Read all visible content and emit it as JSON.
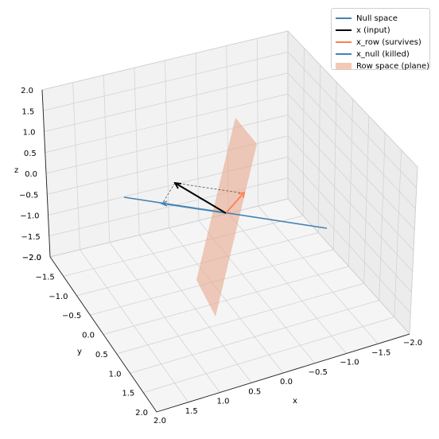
{
  "chart_data": {
    "type": "3d-line",
    "title": "",
    "xlabel": "x",
    "ylabel": "y",
    "zlabel": "z",
    "xlim": [
      -2,
      2
    ],
    "ylim": [
      -2,
      2
    ],
    "zlim": [
      -2,
      2
    ],
    "xticks": [
      "2.0",
      "1.5",
      "1.0",
      "0.5",
      "0.0",
      "−0.5",
      "−1.0",
      "−1.5",
      "−2.0"
    ],
    "yticks": [
      "−2.0",
      "−1.5",
      "−1.0",
      "−0.5",
      "0.0",
      "0.5",
      "1.0",
      "1.5",
      "2.0"
    ],
    "zticks": [
      "2.0",
      "1.5",
      "1.0",
      "0.5",
      "0.0",
      "−0.5",
      "−1.0",
      "−1.5",
      "−2.0"
    ],
    "grid": true,
    "legend_position": "top-right",
    "series": [
      {
        "name": "Null space",
        "kind": "line",
        "color": "#4682b4"
      },
      {
        "name": "x (input)",
        "kind": "arrow",
        "color": "#000000"
      },
      {
        "name": "x_row (survives)",
        "kind": "arrow",
        "color": "#ff7f50"
      },
      {
        "name": "x_null (killed)",
        "kind": "arrow",
        "color": "#4682b4"
      },
      {
        "name": "Row space (plane)",
        "kind": "surface",
        "color": "#e8a88e"
      }
    ]
  }
}
